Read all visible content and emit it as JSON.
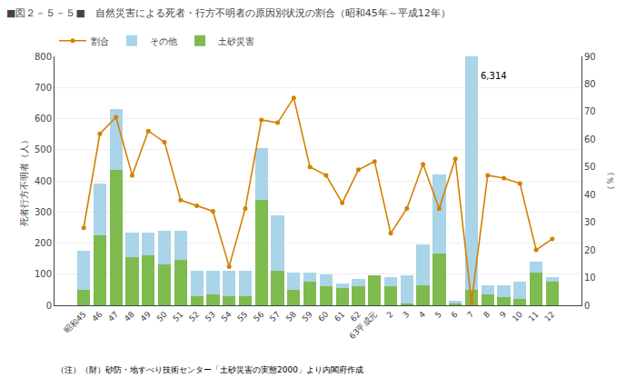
{
  "chart_data": {
    "type": "bar",
    "title": "■図２－５－５■　自然災害による死者・行方不明者の原因別状況の割合（昭和45年～平成12年）",
    "note": "（注）（財）砂防・地すべり技術センター「土砂災害の実態2000」より内閣府作成",
    "ylabel": "死者行方不明者（人）",
    "y2label": "（％）",
    "categories": [
      "昭和45",
      "46",
      "47",
      "48",
      "49",
      "50",
      "51",
      "52",
      "53",
      "54",
      "55",
      "56",
      "57",
      "58",
      "59",
      "60",
      "61",
      "62",
      "63平成元",
      "2",
      "3",
      "4",
      "5",
      "6",
      "7",
      "8",
      "9",
      "10",
      "11",
      "12"
    ],
    "series": [
      {
        "name": "土砂災害",
        "type": "bar",
        "color": "#7fba4e",
        "values": [
          50,
          225,
          435,
          155,
          160,
          130,
          145,
          30,
          35,
          30,
          30,
          340,
          110,
          50,
          75,
          60,
          55,
          60,
          95,
          60,
          5,
          65,
          165,
          5,
          50,
          35,
          25,
          20,
          105,
          75
        ]
      },
      {
        "name": "その他",
        "type": "bar",
        "color": "#aad4e8",
        "values": [
          125,
          165,
          195,
          80,
          75,
          110,
          95,
          80,
          75,
          80,
          80,
          165,
          180,
          55,
          30,
          40,
          15,
          25,
          0,
          30,
          90,
          130,
          255,
          10,
          750,
          30,
          40,
          55,
          35,
          15
        ]
      },
      {
        "name": "割合",
        "type": "line",
        "axis": "y2",
        "color": "#d48000",
        "marker": "o",
        "values": [
          28.0,
          62.0,
          68.0,
          47.0,
          63.0,
          59.0,
          38.0,
          36.0,
          34.0,
          14.0,
          35.0,
          67.0,
          66.0,
          75.0,
          50.0,
          47.0,
          37.0,
          49.0,
          52.0,
          26.0,
          35.0,
          51.0,
          35.0,
          53.0,
          1.0,
          47.0,
          46.0,
          44.0,
          20.0,
          24.0
        ]
      }
    ],
    "stacked": true,
    "ylim": [
      0,
      800
    ],
    "yticks": [
      0,
      100,
      200,
      300,
      400,
      500,
      600,
      700,
      800
    ],
    "y2lim": [
      0,
      90
    ],
    "y2ticks": [
      0,
      10,
      20,
      30,
      40,
      50,
      60,
      70,
      80,
      90
    ],
    "grid": true,
    "legend": "upper left",
    "annotations": [
      {
        "text": "6,314",
        "x": "7",
        "y": 760
      }
    ]
  }
}
